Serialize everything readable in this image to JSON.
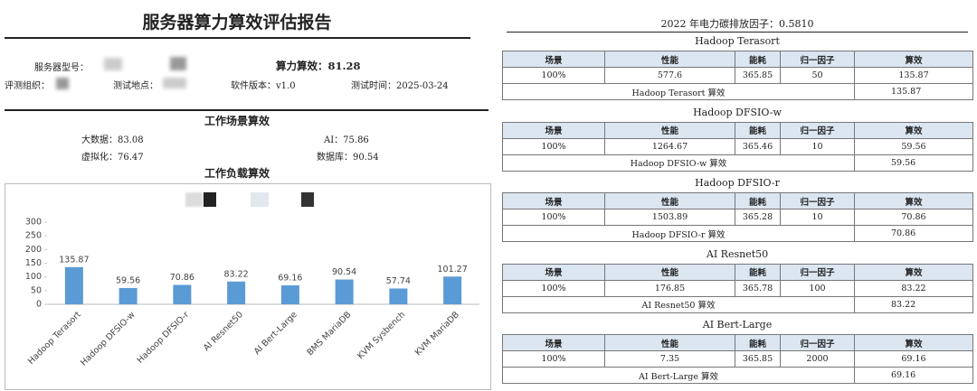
{
  "report": {
    "title": "服务器算力算效评估报告",
    "fields": {
      "model": "服务器型号：",
      "score": "算力算效：81.28",
      "org": "评测组织：",
      "location": "测试地点：",
      "software": "软件版本：v1.0",
      "date": "测试时间：2025-03-24"
    },
    "scenario_heading": "工作场景算效",
    "scenarios": [
      "大数据：83.08",
      "AI：75.86",
      "虚拟化：76.47",
      "数据库：90.54"
    ]
  },
  "chart_data": {
    "type": "bar",
    "title": "工作负载算效",
    "categories": [
      "Hadoop Terasort",
      "Hadoop DFSIO-w",
      "Hadoop DFSIO-r",
      "AI Resnet50",
      "AI Bert-Large",
      "BMS MariaDB",
      "KVM Sysbench",
      "KVM MariaDB"
    ],
    "values": [
      135.87,
      59.56,
      70.86,
      83.22,
      69.16,
      90.54,
      57.74,
      101.27
    ],
    "color": "#5b9bd5",
    "ylim": [
      0,
      300
    ],
    "yticks": [
      0,
      50,
      100,
      150,
      200,
      250,
      300
    ],
    "grid": false
  },
  "carbon": {
    "title": "2022 年电力碳排放因子：0.5810",
    "workloads": [
      {
        "name": "Hadoop Terasort",
        "header": [
          "场景",
          "性能",
          "能耗",
          "归一因子",
          "算效"
        ],
        "row": [
          "100%",
          "577.6",
          "365.85",
          "50",
          "135.87"
        ],
        "summary": [
          "Hadoop Terasort 算效",
          "135.87"
        ]
      },
      {
        "name": "Hadoop DFSIO-w",
        "header": [
          "场景",
          "性能",
          "能耗",
          "归一因子",
          "算效"
        ],
        "row": [
          "100%",
          "1264.67",
          "365.46",
          "10",
          "59.56"
        ],
        "summary": [
          "Hadoop DFSIO-w 算效",
          "59.56"
        ]
      },
      {
        "name": "Hadoop DFSIO-r",
        "header": [
          "场景",
          "性能",
          "能耗",
          "归一因子",
          "算效"
        ],
        "row": [
          "100%",
          "1503.89",
          "365.28",
          "10",
          "70.86"
        ],
        "summary": [
          "Hadoop DFSIO-r 算效",
          "70.86"
        ]
      },
      {
        "name": "AI Resnet50",
        "header": [
          "场景",
          "性能",
          "能耗",
          "归一因子",
          "算效"
        ],
        "row": [
          "100%",
          "176.85",
          "365.78",
          "100",
          "83.22"
        ],
        "summary": [
          "AI Resnet50 算效",
          "83.22"
        ]
      },
      {
        "name": "AI Bert-Large",
        "header": [
          "场景",
          "性能",
          "能耗",
          "归一因子",
          "算效"
        ],
        "row": [
          "100%",
          "7.35",
          "365.85",
          "2000",
          "69.16"
        ],
        "summary": [
          "AI Bert-Large 算效",
          "69.16"
        ]
      }
    ]
  }
}
